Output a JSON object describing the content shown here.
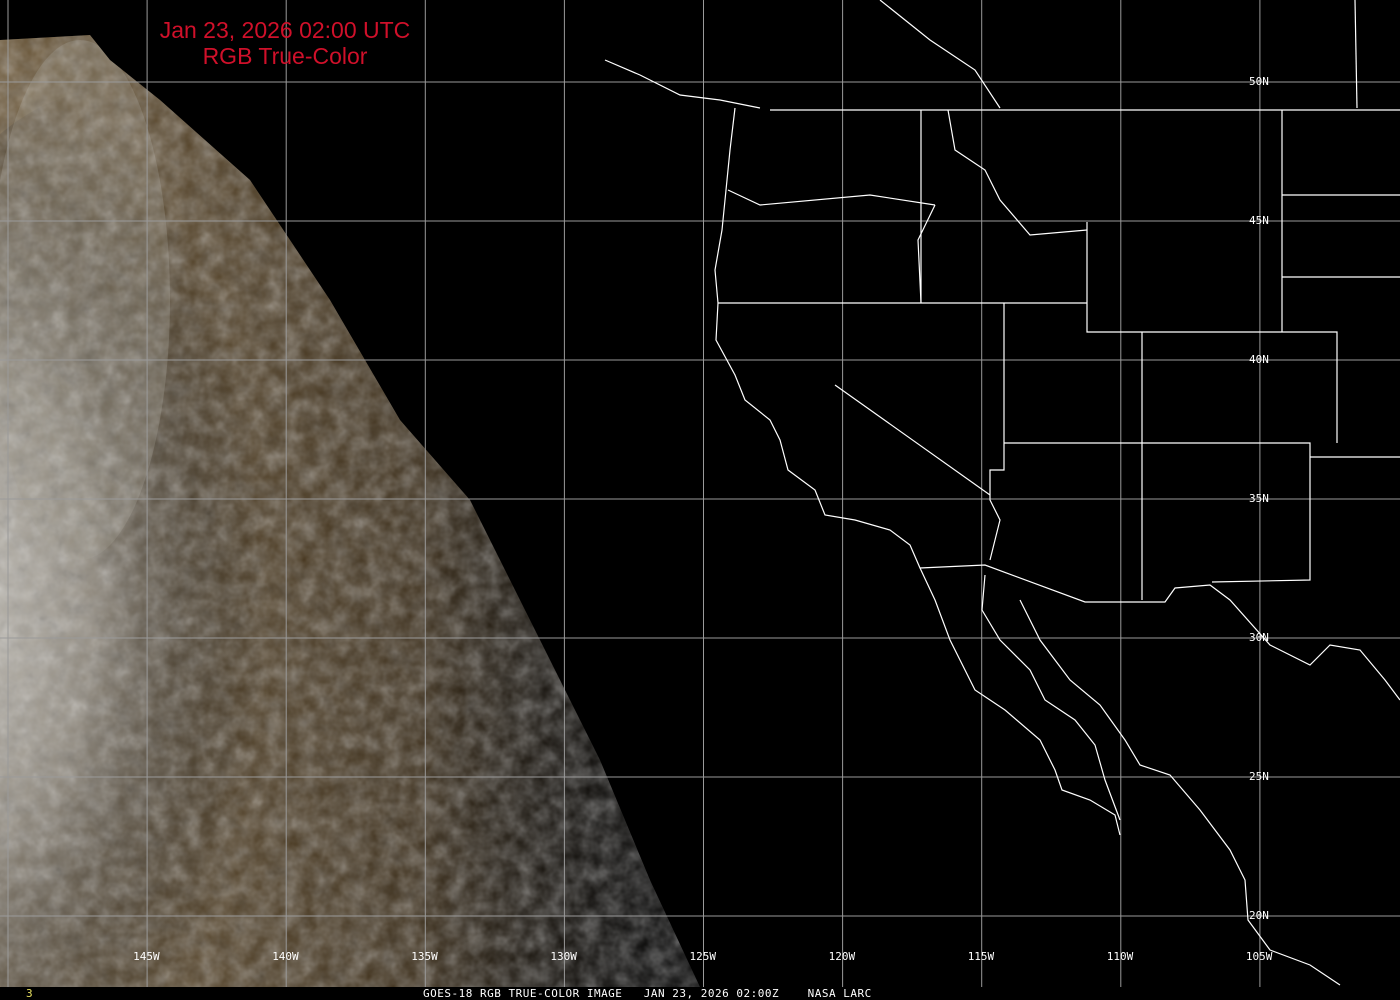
{
  "title": {
    "line1": "Jan 23, 2026 02:00 UTC",
    "line2": "RGB True-Color"
  },
  "longitude_labels": [
    "145W",
    "140W",
    "135W",
    "130W",
    "125W",
    "120W",
    "115W",
    "110W",
    "105W"
  ],
  "latitude_labels": [
    "50N",
    "45N",
    "40N",
    "35N",
    "30N",
    "25N",
    "20N"
  ],
  "footer": {
    "frame": "3",
    "caption": "GOES-18 RGB TRUE-COLOR IMAGE   JAN 23, 2026 02:00Z    NASA LARC"
  },
  "colors": {
    "title": "#d0102a",
    "grid": "#9a9a9a",
    "borders": "#ffffff",
    "frame": "#e8e060"
  }
}
